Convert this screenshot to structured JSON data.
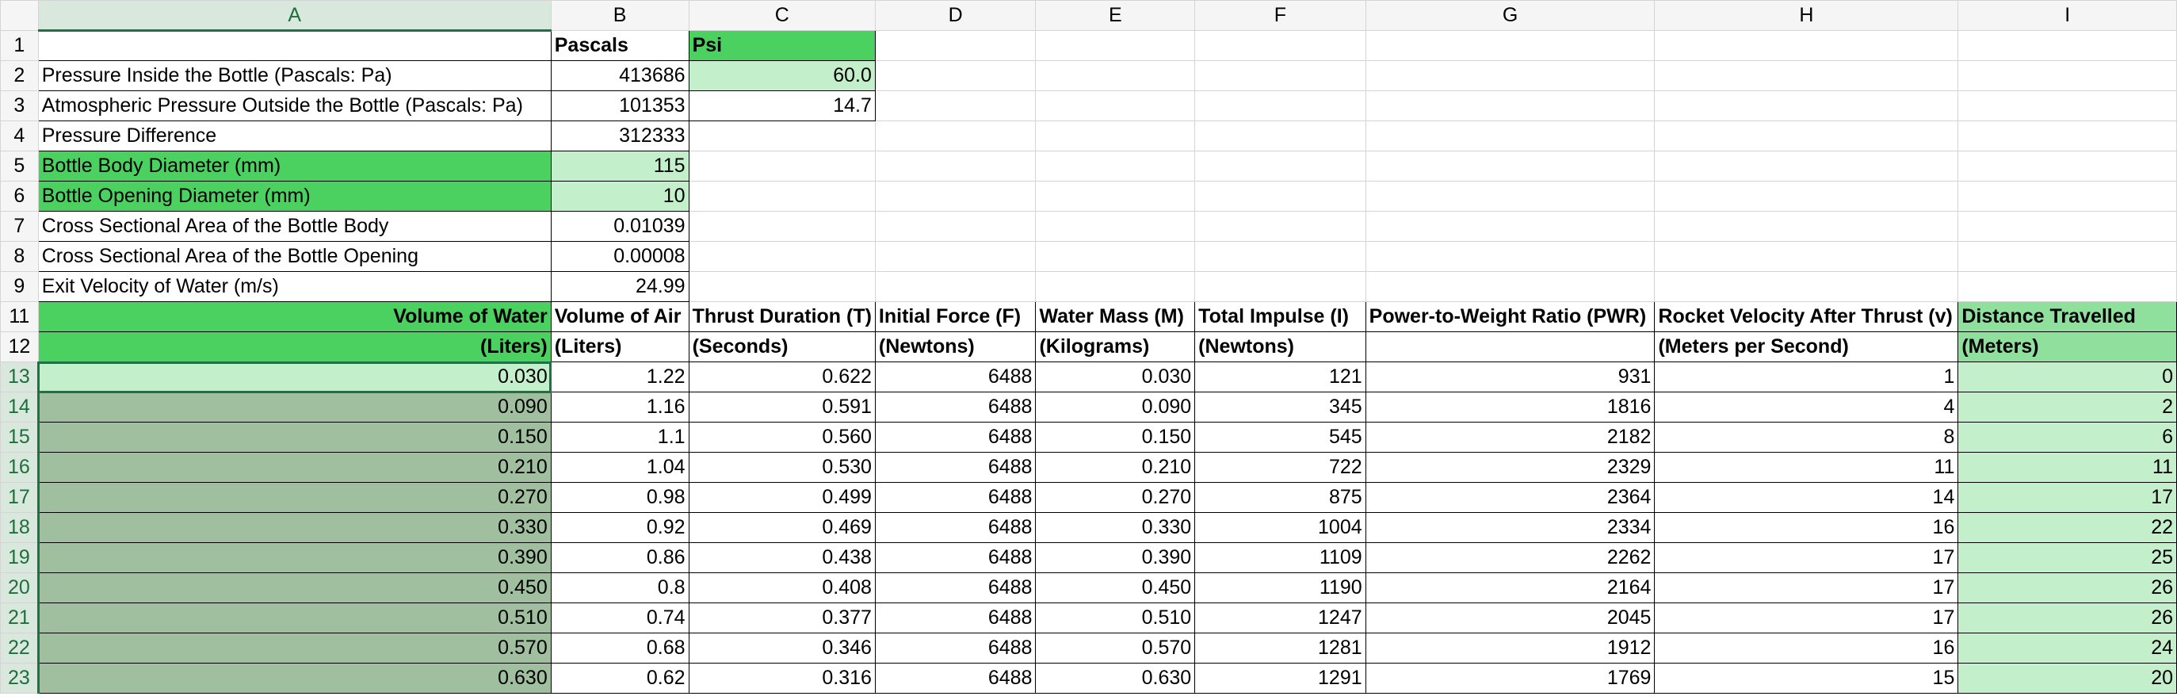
{
  "columns": [
    "A",
    "B",
    "C",
    "D",
    "E",
    "F",
    "G",
    "H",
    "I"
  ],
  "row_numbers": [
    "1",
    "2",
    "3",
    "4",
    "5",
    "6",
    "7",
    "8",
    "9",
    "11",
    "12",
    "13",
    "14",
    "15",
    "16",
    "17",
    "18",
    "19",
    "20",
    "21",
    "22",
    "23"
  ],
  "header_row": {
    "B": "Pascals",
    "C": "Psi"
  },
  "inputs": [
    {
      "label": "Pressure Inside the Bottle (Pascals: Pa)",
      "b": "413686",
      "c": "60.0"
    },
    {
      "label": "Atmospheric Pressure Outside the Bottle (Pascals: Pa)",
      "b": "101353",
      "c": "14.7"
    },
    {
      "label": "Pressure Difference",
      "b": "312333",
      "c": ""
    },
    {
      "label": "Bottle Body Diameter (mm)",
      "b": "115",
      "c": ""
    },
    {
      "label": "Bottle Opening Diameter (mm)",
      "b": "10",
      "c": ""
    },
    {
      "label": "Cross Sectional Area of the Bottle Body",
      "b": "0.01039",
      "c": ""
    },
    {
      "label": "Cross Sectional Area of the Bottle Opening",
      "b": "0.00008",
      "c": ""
    },
    {
      "label": "Exit Velocity of Water (m/s)",
      "b": "24.99",
      "c": ""
    }
  ],
  "table_headers": {
    "row11": [
      "Volume of Water",
      "Volume of Air",
      "Thrust Duration (T)",
      "Initial Force (F)",
      "Water Mass (M)",
      "Total Impulse (I)",
      "Power-to-Weight Ratio (PWR)",
      "Rocket Velocity After Thrust (v)",
      "Distance Travelled"
    ],
    "row12": [
      "(Liters)",
      "(Liters)",
      "(Seconds)",
      "(Newtons)",
      "(Kilograms)",
      "(Newtons)",
      "",
      "(Meters per Second)",
      "(Meters)"
    ]
  },
  "data_rows": [
    [
      "0.030",
      "1.22",
      "0.622",
      "6488",
      "0.030",
      "121",
      "931",
      "1",
      "0"
    ],
    [
      "0.090",
      "1.16",
      "0.591",
      "6488",
      "0.090",
      "345",
      "1816",
      "4",
      "2"
    ],
    [
      "0.150",
      "1.1",
      "0.560",
      "6488",
      "0.150",
      "545",
      "2182",
      "8",
      "6"
    ],
    [
      "0.210",
      "1.04",
      "0.530",
      "6488",
      "0.210",
      "722",
      "2329",
      "11",
      "11"
    ],
    [
      "0.270",
      "0.98",
      "0.499",
      "6488",
      "0.270",
      "875",
      "2364",
      "14",
      "17"
    ],
    [
      "0.330",
      "0.92",
      "0.469",
      "6488",
      "0.330",
      "1004",
      "2334",
      "16",
      "22"
    ],
    [
      "0.390",
      "0.86",
      "0.438",
      "6488",
      "0.390",
      "1109",
      "2262",
      "17",
      "25"
    ],
    [
      "0.450",
      "0.8",
      "0.408",
      "6488",
      "0.450",
      "1190",
      "2164",
      "17",
      "26"
    ],
    [
      "0.510",
      "0.74",
      "0.377",
      "6488",
      "0.510",
      "1247",
      "2045",
      "17",
      "26"
    ],
    [
      "0.570",
      "0.68",
      "0.346",
      "6488",
      "0.570",
      "1281",
      "1912",
      "16",
      "24"
    ],
    [
      "0.630",
      "0.62",
      "0.316",
      "6488",
      "0.630",
      "1291",
      "1769",
      "15",
      "20"
    ]
  ],
  "colors": {
    "header_green": "#4ad15f",
    "light_green": "#c4efcb",
    "selected_green": "#9fbf9f",
    "selection_border": "#1e7145"
  }
}
